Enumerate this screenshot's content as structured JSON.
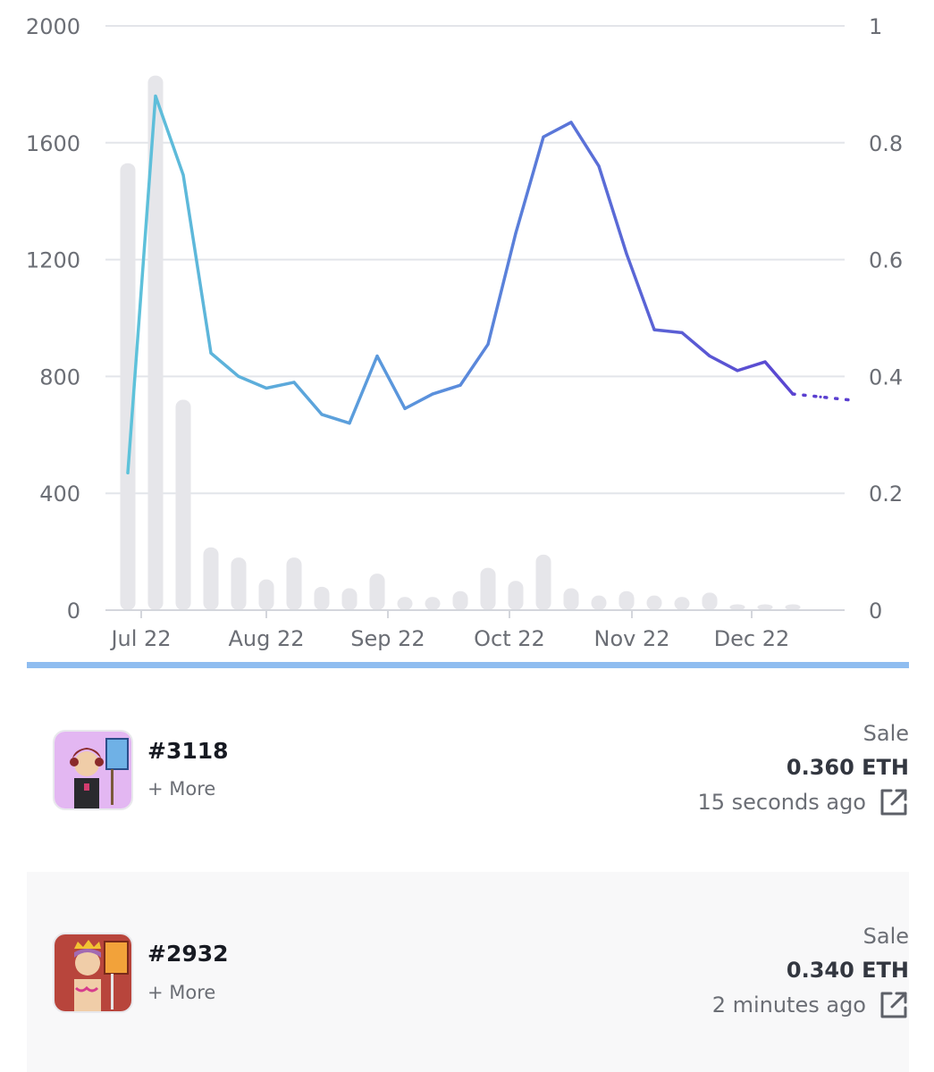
{
  "chart_data": {
    "type": "bar+line",
    "x_tick_labels": [
      "Jul 22",
      "Aug 22",
      "Sep 22",
      "Oct 22",
      "Nov 22",
      "Dec 22"
    ],
    "left_axis": {
      "ticks": [
        "0",
        "400",
        "800",
        "1200",
        "1600",
        "2000"
      ],
      "ylim": [
        0,
        2000
      ]
    },
    "right_axis": {
      "ticks": [
        "0",
        "0.2",
        "0.4",
        "0.6",
        "0.8",
        "1"
      ],
      "ylim": [
        0,
        1
      ]
    },
    "grid": true,
    "series": [
      {
        "type": "bar",
        "values": [
          1530,
          1830,
          720,
          215,
          180,
          105,
          180,
          80,
          75,
          125,
          45,
          45,
          65,
          145,
          100,
          190,
          75,
          50,
          65,
          50,
          45,
          60,
          20,
          20,
          20
        ]
      },
      {
        "type": "line",
        "values": [
          0.235,
          0.88,
          0.745,
          0.44,
          0.4,
          0.38,
          0.39,
          0.335,
          0.32,
          0.435,
          0.345,
          0.37,
          0.385,
          0.455,
          0.645,
          0.81,
          0.835,
          0.76,
          0.61,
          0.48,
          0.475,
          0.435,
          0.41,
          0.425,
          0.37,
          0.365,
          0.36
        ],
        "projected_from_index": 24
      }
    ],
    "colors": {
      "bar": "#e6e6ea",
      "line_start": "#5ec3da",
      "line_end": "#5a3fd0",
      "grid": "#e3e5ea",
      "axis": "#d4d6dc"
    }
  },
  "activity": [
    {
      "token": "#3118",
      "more": "+ More",
      "event": "Sale",
      "price": "0.360 ETH",
      "time": "15 seconds ago",
      "icon": "external-link-icon",
      "thumb_bg": "#e3b7f2"
    },
    {
      "token": "#2932",
      "more": "+ More",
      "event": "Sale",
      "price": "0.340 ETH",
      "time": "2 minutes ago",
      "icon": "external-link-icon",
      "thumb_bg": "#b8453c"
    }
  ],
  "colors": {
    "divider": "#8fbdf0",
    "alt_row": "#f8f8f9"
  }
}
